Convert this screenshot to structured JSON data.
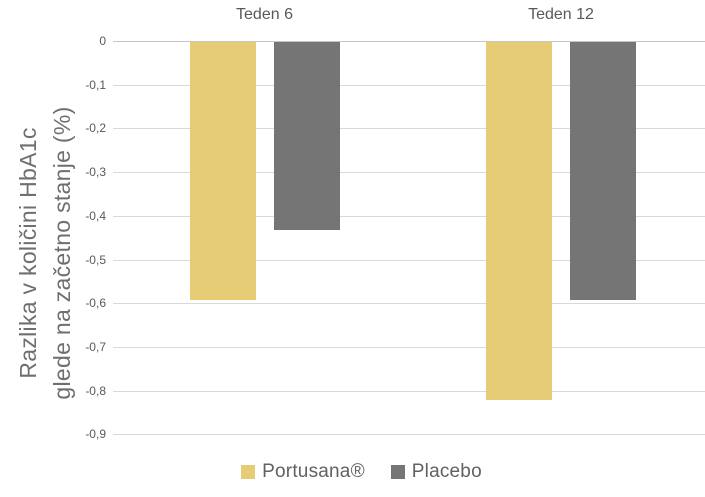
{
  "chart_data": {
    "type": "bar",
    "title": "",
    "categories": [
      "Teden 6",
      "Teden 12"
    ],
    "series": [
      {
        "name": "Portusana®",
        "color": "#E7CC76",
        "values": [
          -0.59,
          -0.82
        ]
      },
      {
        "name": "Placebo",
        "color": "#757575",
        "values": [
          -0.43,
          -0.59
        ]
      }
    ],
    "ylabel_line1": "Razlika v količini HbA1c",
    "ylabel_line2": "glede na začetno stanje (%)",
    "ylim": [
      -0.9,
      0
    ],
    "yticks": [
      0,
      -0.1,
      -0.2,
      -0.3,
      -0.4,
      -0.5,
      -0.6,
      -0.7,
      -0.8,
      -0.9
    ],
    "ytick_labels": [
      "0",
      "-0,1",
      "-0,2",
      "-0,3",
      "-0,4",
      "-0,5",
      "-0,6",
      "-0,7",
      "-0,8",
      "-0,9"
    ],
    "grid": true,
    "legend_position": "bottom",
    "decimal_separator": ","
  },
  "colors": {
    "series_portusana": "#E7CC76",
    "series_placebo": "#757575",
    "gridline": "#D9D9D9",
    "zero_line": "#C6C6C6",
    "tick_text": "#595959",
    "category_text": "#595959",
    "axis_title_text": "#6F6F6F",
    "legend_text": "#616161",
    "background": "#FFFFFF"
  }
}
